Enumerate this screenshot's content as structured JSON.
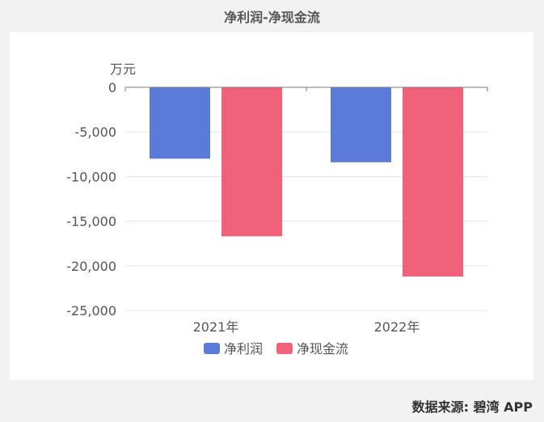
{
  "title": "净利润-净现金流",
  "source": "数据来源: 碧湾 APP",
  "chart_data": {
    "type": "bar",
    "unit": "万元",
    "categories": [
      "2021年",
      "2022年"
    ],
    "series": [
      {
        "name": "净利润",
        "color": "#5b7bd9",
        "values": [
          -8000,
          -8400
        ]
      },
      {
        "name": "净现金流",
        "color": "#f0627a",
        "values": [
          -16700,
          -21200
        ]
      }
    ],
    "ylim": [
      -25000,
      0
    ],
    "yticks": [
      0,
      -5000,
      -10000,
      -15000,
      -20000,
      -25000
    ],
    "ytick_labels": [
      "0",
      "-5,000",
      "-10,000",
      "-15,000",
      "-20,000",
      "-25,000"
    ],
    "grid": true,
    "legend": "bottom"
  }
}
